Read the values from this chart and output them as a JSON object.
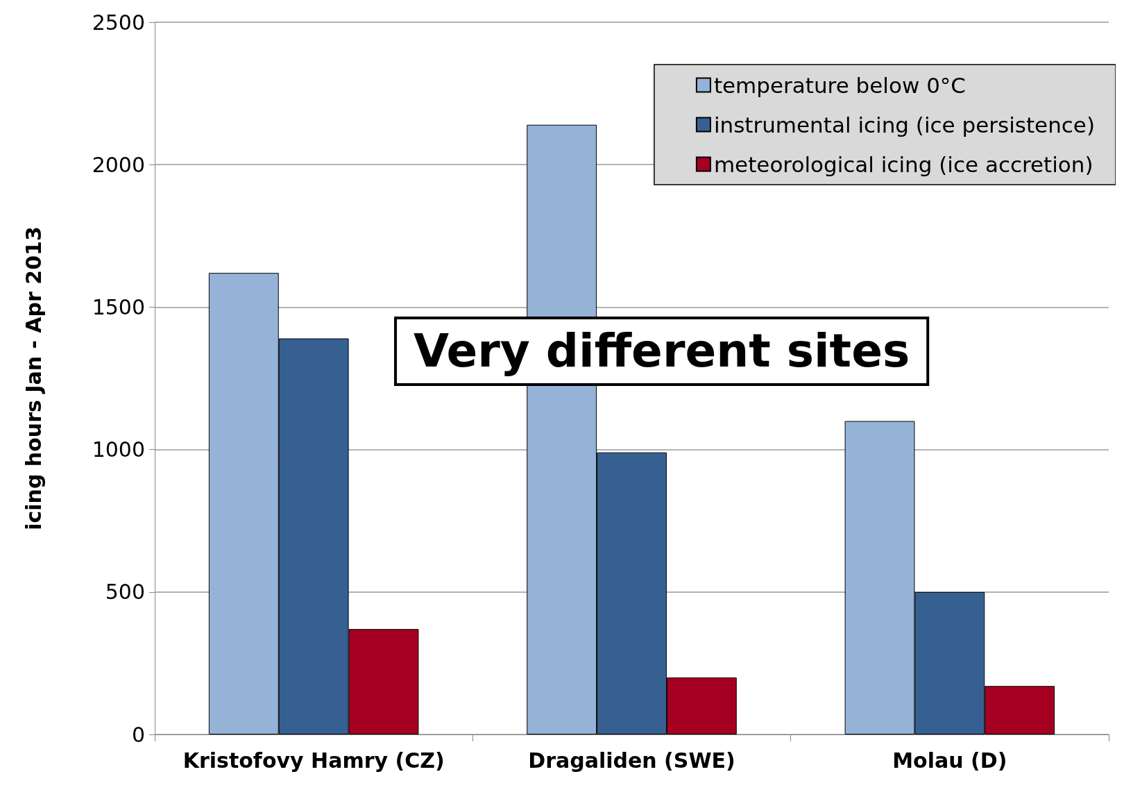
{
  "chart_data": {
    "type": "bar",
    "categories": [
      "Kristofovy Hamry (CZ)",
      "Dragaliden (SWE)",
      "Molau (D)"
    ],
    "ylabel": "icing hours Jan - Apr 2013",
    "series": [
      {
        "name": "temperature below 0°C",
        "color": "#95b3d7",
        "values": [
          1620,
          2140,
          1100
        ]
      },
      {
        "name": "instrumental icing (ice persistence)",
        "color": "#376092",
        "values": [
          1390,
          990,
          500
        ]
      },
      {
        "name": "meteorological icing (ice accretion)",
        "color": "#a50021",
        "values": [
          370,
          200,
          170
        ]
      }
    ],
    "ylim": [
      0,
      2500
    ],
    "yticks": [
      0,
      500,
      1000,
      1500,
      2000,
      2500
    ],
    "grid": "y",
    "legend": "top right",
    "annotations": [
      "Very different sites"
    ]
  }
}
